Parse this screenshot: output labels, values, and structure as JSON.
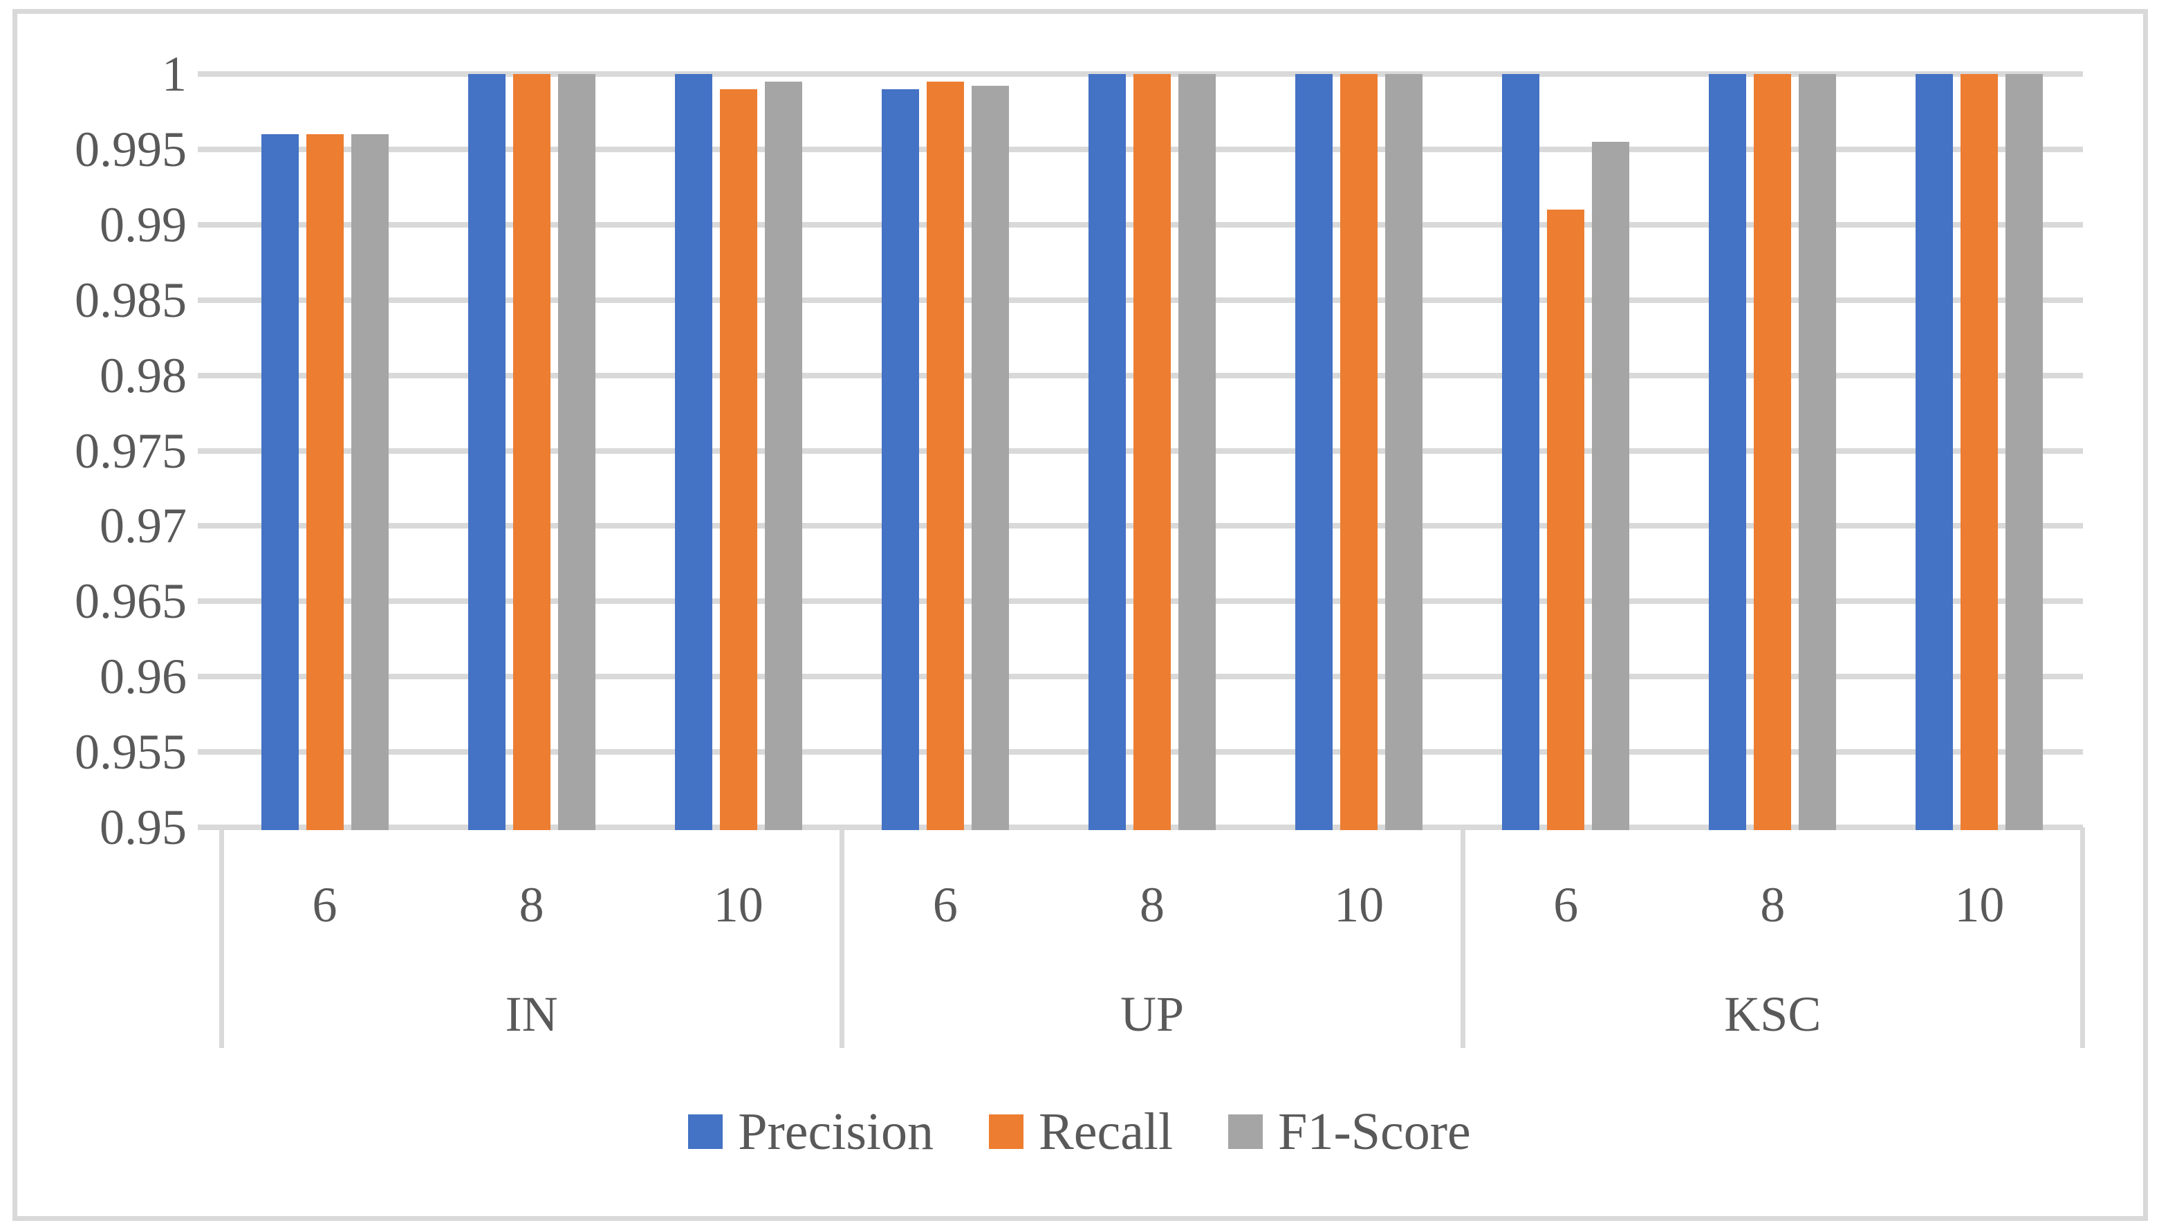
{
  "figure": {
    "background": "#FFFFFF",
    "border_color": "#D9D9D9",
    "gridline_color": "#D9D9D9",
    "text_color": "#595959"
  },
  "chart_data": {
    "type": "bar",
    "title": "",
    "xlabel": "",
    "ylabel": "",
    "ylim": [
      0.95,
      1
    ],
    "ytick_step": 0.005,
    "grid": true,
    "legend_position": "bottom-center",
    "yticks": [
      {
        "value": 1,
        "label": "1"
      },
      {
        "value": 0.995,
        "label": "0.995"
      },
      {
        "value": 0.99,
        "label": "0.99"
      },
      {
        "value": 0.985,
        "label": "0.985"
      },
      {
        "value": 0.98,
        "label": "0.98"
      },
      {
        "value": 0.975,
        "label": "0.975"
      },
      {
        "value": 0.97,
        "label": "0.97"
      },
      {
        "value": 0.965,
        "label": "0.965"
      },
      {
        "value": 0.96,
        "label": "0.96"
      },
      {
        "value": 0.955,
        "label": "0.955"
      },
      {
        "value": 0.95,
        "label": "0.95"
      }
    ],
    "groups": [
      {
        "label": "IN",
        "subcategories": [
          "6",
          "8",
          "10"
        ]
      },
      {
        "label": "UP",
        "subcategories": [
          "6",
          "8",
          "10"
        ]
      },
      {
        "label": "KSC",
        "subcategories": [
          "6",
          "8",
          "10"
        ]
      }
    ],
    "series": [
      {
        "name": "Precision",
        "color": "#4472C4",
        "values": [
          [
            0.996,
            1,
            1
          ],
          [
            0.999,
            1,
            1
          ],
          [
            1,
            1,
            1
          ]
        ]
      },
      {
        "name": "Recall",
        "color": "#ED7D31",
        "values": [
          [
            0.996,
            1,
            0.999
          ],
          [
            0.9995,
            1,
            1
          ],
          [
            0.991,
            1,
            1
          ]
        ]
      },
      {
        "name": "F1-Score",
        "color": "#A5A5A5",
        "values": [
          [
            0.996,
            1,
            0.9995
          ],
          [
            0.9992,
            1,
            1
          ],
          [
            0.9955,
            1,
            1
          ]
        ]
      }
    ]
  }
}
